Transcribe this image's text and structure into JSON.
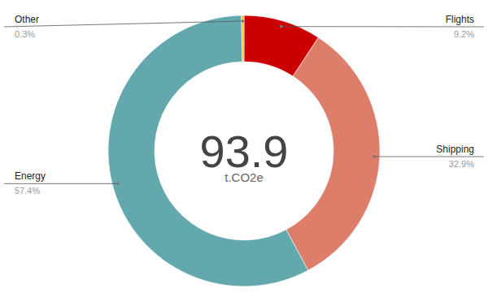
{
  "chart_data": {
    "type": "donut",
    "categories": [
      "Flights",
      "Shipping",
      "Energy",
      "Other"
    ],
    "values": [
      9.2,
      32.9,
      57.4,
      0.3
    ],
    "value_labels": [
      "9.2%",
      "32.9%",
      "57.4%",
      "0.3%"
    ],
    "colors": [
      "#cc0000",
      "#dd7e6b",
      "#62a8ac",
      "#f1c232"
    ],
    "data_labels": true,
    "total": 93.9,
    "total_unit": "t.CO2e"
  }
}
